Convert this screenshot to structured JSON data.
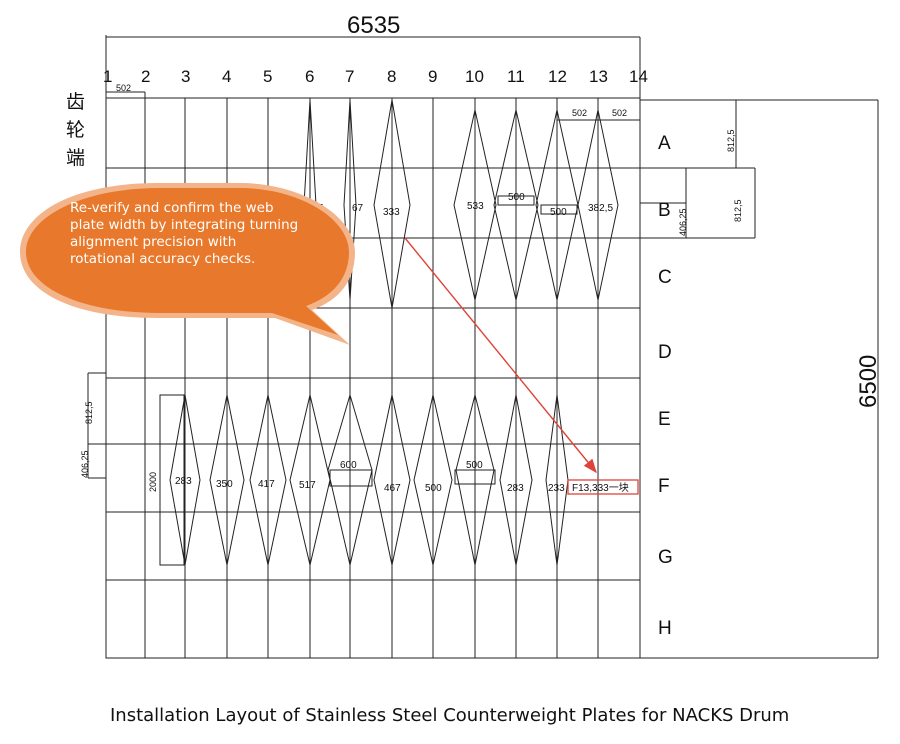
{
  "dimensions": {
    "total_width": "6535",
    "total_height": "6500",
    "width_502_a": "502",
    "width_502_b": "502",
    "width_502_c": "502",
    "row_812_5_top": "812,5",
    "row_812_5_mid": "812,5",
    "row_406_25_mid": "406,25",
    "row_812_5_left": "812,5",
    "row_406_25_left": "406,25",
    "plate_length": "2000"
  },
  "columns": [
    "1",
    "2",
    "3",
    "4",
    "5",
    "6",
    "7",
    "8",
    "9",
    "10",
    "11",
    "12",
    "13",
    "14"
  ],
  "rows": [
    "A",
    "B",
    "C",
    "D",
    "E",
    "F",
    "G",
    "H"
  ],
  "gear_end_label": [
    "齿",
    "轮",
    "端"
  ],
  "row_b_plate_widths": [
    "67",
    "67",
    "333",
    "533",
    "500",
    "500",
    "382,5"
  ],
  "row_f_plate_widths": [
    "283",
    "350",
    "417",
    "517",
    "600",
    "467",
    "500",
    "500",
    "283",
    "233"
  ],
  "annotation_box": "F13,333一块",
  "callout": {
    "text": "Re-verify and confirm the web plate width by integrating turning alignment precision with rotational accuracy checks.",
    "color": "#e8782b",
    "border_color": "#f3b48a"
  },
  "caption": "Installation Layout of Stainless Steel Counterweight Plates for NACKS Drum",
  "colors": {
    "line": "#222222",
    "arrow": "#e0433a",
    "box": "#e0433a"
  }
}
